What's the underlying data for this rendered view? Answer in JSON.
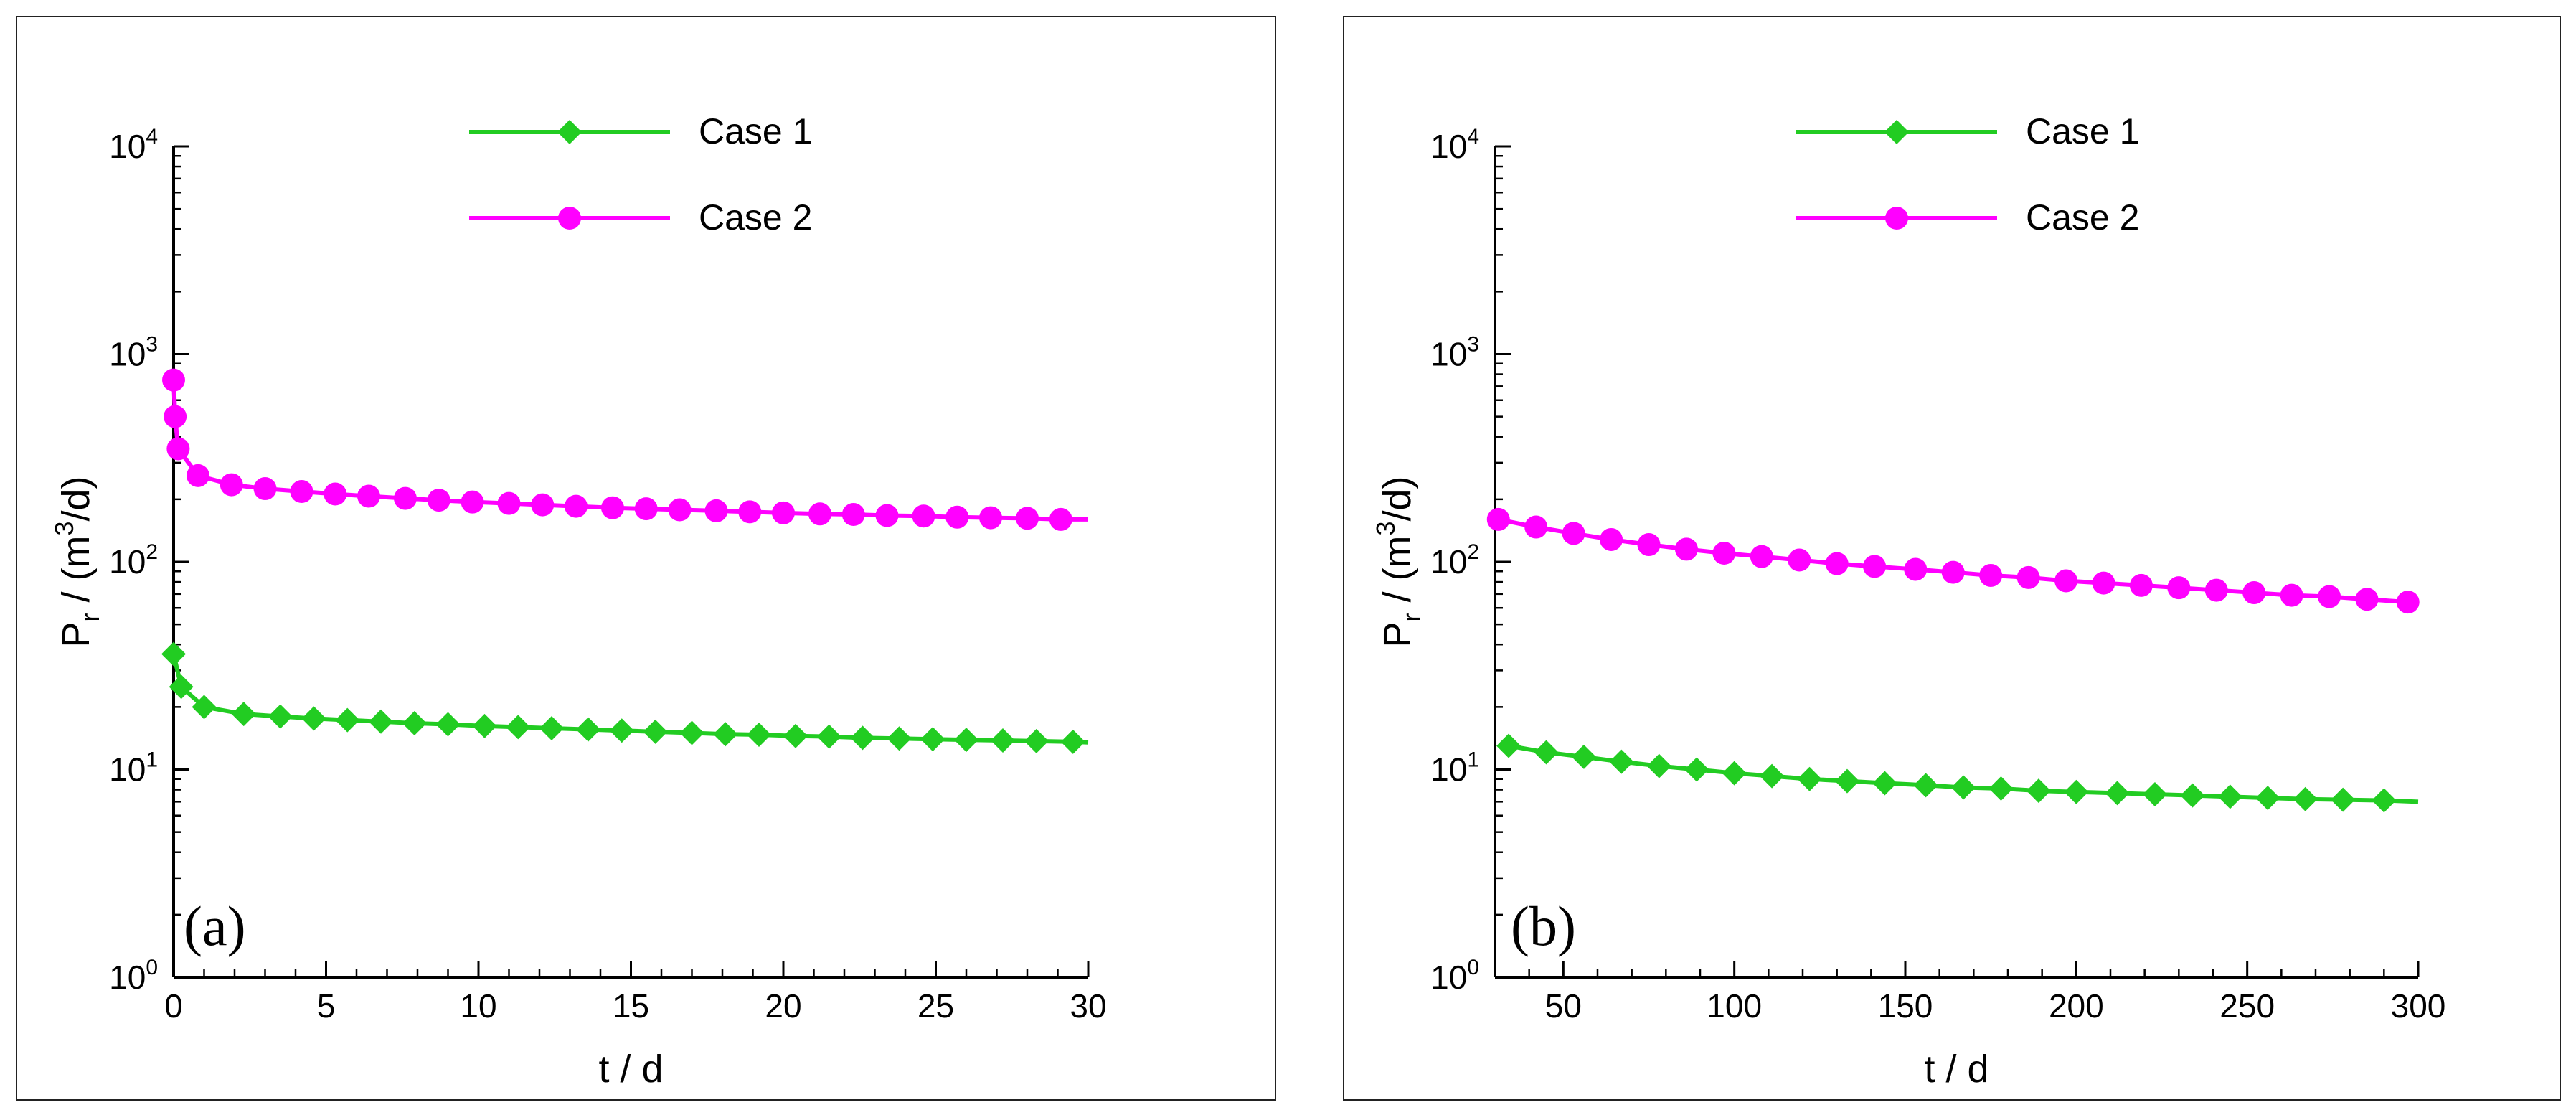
{
  "chart_data": [
    {
      "type": "line",
      "panel_label": "(a)",
      "xlabel": "t / d",
      "ylabel": "Pr / (m3/d)",
      "ylabel_parts": {
        "base": "P",
        "sub": "r",
        "mid": " / (m",
        "sup": "3",
        "end": "/d)"
      },
      "yscale": "log",
      "xlim": [
        0,
        30
      ],
      "ylim": [
        1,
        10000
      ],
      "xticks": [
        0,
        5,
        10,
        15,
        20,
        25,
        30
      ],
      "yticks": [
        {
          "value": 1,
          "base": "10",
          "exp": "0"
        },
        {
          "value": 10,
          "base": "10",
          "exp": "1"
        },
        {
          "value": 100,
          "base": "10",
          "exp": "2"
        },
        {
          "value": 1000,
          "base": "10",
          "exp": "3"
        },
        {
          "value": 10000,
          "base": "10",
          "exp": "4"
        }
      ],
      "legend": "top-center",
      "series": [
        {
          "name": "Case 1",
          "color": "#22cc22",
          "marker": "diamond",
          "x": [
            0,
            0.25,
            1,
            2.3,
            3.5,
            4.6,
            5.7,
            6.8,
            7.9,
            9.0,
            10.2,
            11.3,
            12.4,
            13.6,
            14.7,
            15.8,
            17.0,
            18.1,
            19.2,
            20.4,
            21.5,
            22.6,
            23.8,
            24.9,
            26.0,
            27.2,
            28.3,
            29.5
          ],
          "y": [
            36,
            25,
            20,
            18.5,
            18.0,
            17.6,
            17.3,
            17.0,
            16.7,
            16.5,
            16.2,
            16.0,
            15.8,
            15.6,
            15.4,
            15.2,
            15.0,
            14.8,
            14.7,
            14.5,
            14.4,
            14.2,
            14.1,
            14.0,
            13.9,
            13.8,
            13.7,
            13.6
          ],
          "line_end": {
            "x": 30,
            "y": 13.5
          }
        },
        {
          "name": "Case 2",
          "color": "#ff00ff",
          "marker": "circle",
          "x": [
            0,
            0.05,
            0.15,
            0.8,
            1.9,
            3.0,
            4.2,
            5.3,
            6.4,
            7.6,
            8.7,
            9.8,
            11.0,
            12.1,
            13.2,
            14.4,
            15.5,
            16.6,
            17.8,
            18.9,
            20.0,
            21.2,
            22.3,
            23.4,
            24.6,
            25.7,
            26.8,
            28.0,
            29.1
          ],
          "y": [
            750,
            500,
            350,
            260,
            235,
            225,
            218,
            212,
            207,
            202,
            198,
            194,
            191,
            188,
            185,
            182,
            180,
            178,
            176,
            174,
            172,
            170,
            169,
            167,
            166,
            164,
            163,
            162,
            160
          ],
          "line_end": {
            "x": 30,
            "y": 160
          }
        }
      ]
    },
    {
      "type": "line",
      "panel_label": "(b)",
      "xlabel": "t / d",
      "ylabel": "Pr / (m3/d)",
      "ylabel_parts": {
        "base": "P",
        "sub": "r",
        "mid": " / (m",
        "sup": "3",
        "end": "/d)"
      },
      "yscale": "log",
      "xlim": [
        30,
        300
      ],
      "ylim": [
        1,
        10000
      ],
      "xticks": [
        50,
        100,
        150,
        200,
        250,
        300
      ],
      "yticks": [
        {
          "value": 1,
          "base": "10",
          "exp": "0"
        },
        {
          "value": 10,
          "base": "10",
          "exp": "1"
        },
        {
          "value": 100,
          "base": "10",
          "exp": "2"
        },
        {
          "value": 1000,
          "base": "10",
          "exp": "3"
        },
        {
          "value": 10000,
          "base": "10",
          "exp": "4"
        }
      ],
      "legend": "top-center",
      "series": [
        {
          "name": "Case 1",
          "color": "#22cc22",
          "marker": "diamond",
          "x": [
            34,
            45,
            56,
            67,
            78,
            89,
            100,
            111,
            122,
            133,
            144,
            156,
            167,
            178,
            189,
            200,
            212,
            223,
            234,
            245,
            256,
            267,
            278,
            290
          ],
          "y": [
            13.0,
            12.1,
            11.5,
            10.9,
            10.4,
            10.0,
            9.6,
            9.3,
            9.0,
            8.8,
            8.6,
            8.4,
            8.2,
            8.1,
            7.9,
            7.8,
            7.7,
            7.6,
            7.5,
            7.4,
            7.3,
            7.2,
            7.15,
            7.1
          ],
          "line_end": {
            "x": 300,
            "y": 7.0
          }
        },
        {
          "name": "Case 2",
          "color": "#ff00ff",
          "marker": "circle",
          "x": [
            31,
            42,
            53,
            64,
            75,
            86,
            97,
            108,
            119,
            130,
            141,
            153,
            164,
            175,
            186,
            197,
            208,
            219,
            230,
            241,
            252,
            263,
            274,
            285,
            297
          ],
          "y": [
            160,
            147,
            137,
            128,
            121,
            115,
            110,
            106,
            102,
            98,
            95,
            92,
            89,
            86,
            84,
            81,
            79,
            77,
            75,
            73,
            71,
            69,
            68,
            66,
            64
          ],
          "line_end": {
            "x": 300,
            "y": 64
          }
        }
      ]
    }
  ]
}
